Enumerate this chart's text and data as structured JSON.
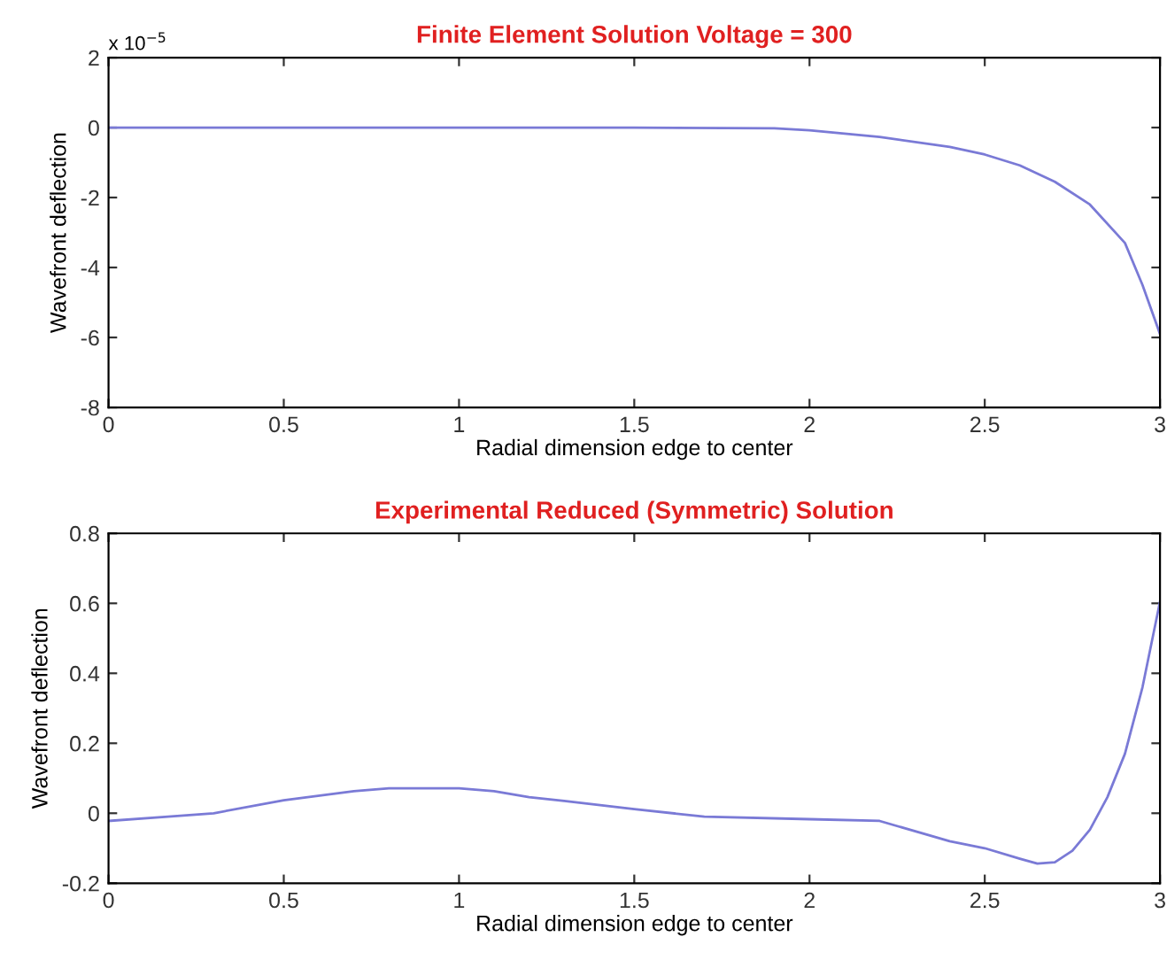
{
  "chart_data": [
    {
      "type": "line",
      "title": "Finite Element Solution Voltage = 300",
      "xlabel": "Radial dimension edge to center",
      "ylabel": "Wavefront deflection",
      "annotations": [
        "x 10$^{−5}$"
      ],
      "x": [
        0,
        0.5,
        1,
        1.5,
        1.9,
        2,
        2.2,
        2.4,
        2.5,
        2.6,
        2.7,
        2.8,
        2.9,
        2.95,
        3
      ],
      "series": [
        {
          "color": "#7a7ad6",
          "values": [
            0,
            0,
            0,
            0,
            -0.02,
            -0.08,
            -0.27,
            -0.55,
            -0.77,
            -1.08,
            -1.55,
            -2.2,
            -3.3,
            -4.5,
            -5.9
          ]
        }
      ],
      "xlim": [
        0,
        3
      ],
      "xticks": [
        0,
        0.5,
        1,
        1.5,
        2,
        2.5,
        3
      ],
      "ylim": [
        -8,
        2
      ],
      "yticks": [
        -8,
        -6,
        -4,
        -2,
        0,
        2
      ],
      "grid": false,
      "legend": false
    },
    {
      "type": "line",
      "title": "Experimental Reduced (Symmetric) Solution",
      "xlabel": "Radial dimension edge to center",
      "ylabel": "Wavefront deflection",
      "x": [
        0,
        0.17,
        0.3,
        0.5,
        0.7,
        0.8,
        1.0,
        1.1,
        1.2,
        1.3,
        1.5,
        1.7,
        2.0,
        2.2,
        2.4,
        2.5,
        2.6,
        2.65,
        2.7,
        2.75,
        2.8,
        2.85,
        2.9,
        2.95,
        3.0
      ],
      "series": [
        {
          "color": "#7a7ad6",
          "values": [
            -0.022,
            -0.01,
            0,
            0.037,
            0.063,
            0.071,
            0.071,
            0.063,
            0.046,
            0.035,
            0.012,
            -0.01,
            -0.017,
            -0.022,
            -0.08,
            -0.1,
            -0.13,
            -0.144,
            -0.14,
            -0.107,
            -0.047,
            0.046,
            0.17,
            0.36,
            0.605
          ]
        }
      ],
      "xlim": [
        0,
        3
      ],
      "xticks": [
        0,
        0.5,
        1,
        1.5,
        2,
        2.5,
        3
      ],
      "ylim": [
        -0.2,
        0.8
      ],
      "yticks": [
        -0.2,
        0,
        0.2,
        0.4,
        0.6,
        0.8
      ],
      "grid": false,
      "legend": false
    }
  ]
}
